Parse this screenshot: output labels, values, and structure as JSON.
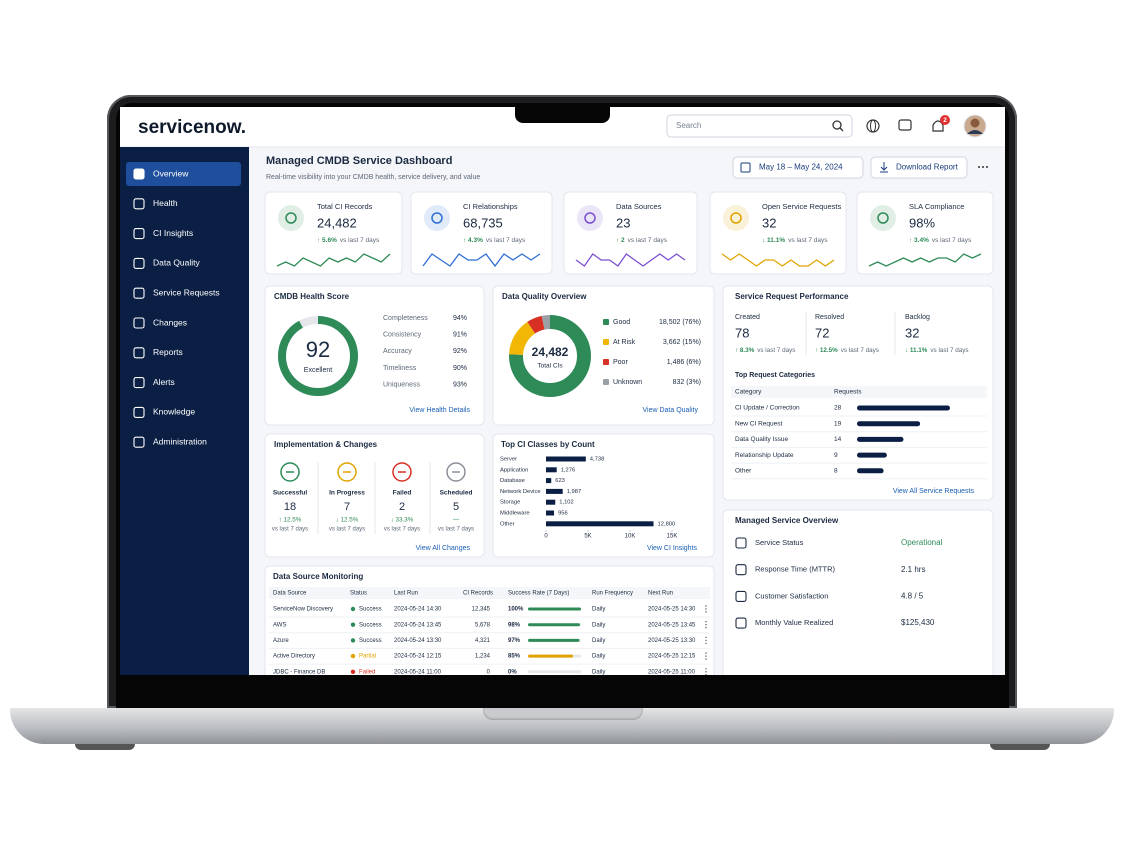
{
  "header": {
    "logo": "servicenow.",
    "search_placeholder": "Search",
    "notification_count": "2"
  },
  "nav": {
    "items": [
      "Overview",
      "Health",
      "CI Insights",
      "Data Quality",
      "Service Requests",
      "Changes",
      "Reports",
      "Alerts",
      "Knowledge",
      "Administration"
    ],
    "active": 0
  },
  "page": {
    "title": "Managed CMDB Service Dashboard",
    "subtitle": "Real-time visibility into your CMDB health, service delivery, and value",
    "date_range": "May 18 – May 24, 2024",
    "download": "Download Report"
  },
  "kpis": [
    {
      "label": "Total CI Records",
      "value": "24,482",
      "change": "↑ 5.6%",
      "period": "vs last 7 days",
      "color": "#2e8b57",
      "spark": [
        6,
        7,
        6,
        8,
        7,
        6,
        8,
        7,
        8,
        7,
        9,
        8,
        7,
        9
      ]
    },
    {
      "label": "CI Relationships",
      "value": "68,735",
      "change": "↑ 4.3%",
      "period": "vs last 7 days",
      "color": "#2f6fd6",
      "spark": [
        6,
        8,
        7,
        6,
        8,
        7,
        7,
        8,
        6,
        8,
        7,
        8,
        7,
        8
      ]
    },
    {
      "label": "Data Sources",
      "value": "23",
      "change": "↑ 2",
      "period": "vs last 7 days",
      "color": "#7b4fd0",
      "spark": [
        7,
        6,
        8,
        7,
        7,
        6,
        8,
        7,
        6,
        7,
        8,
        7,
        8,
        7
      ]
    },
    {
      "label": "Open Service Requests",
      "value": "32",
      "change": "↓ 11.1%",
      "period": "vs last 7 days",
      "color": "#e0a300",
      "spark": [
        8,
        7,
        8,
        7,
        6,
        7,
        7,
        6,
        7,
        6,
        6,
        7,
        6,
        7
      ]
    },
    {
      "label": "SLA Compliance",
      "value": "98%",
      "change": "↑ 3.4%",
      "period": "vs last 7 days",
      "color": "#2e8b57",
      "spark": [
        6,
        7,
        6,
        7,
        8,
        7,
        8,
        7,
        8,
        8,
        7,
        9,
        8,
        9
      ]
    }
  ],
  "health": {
    "title": "CMDB Health Score",
    "score": 92,
    "score_range": [
      0,
      100
    ],
    "rating": "Excellent",
    "color": "#2e8b57",
    "metrics": [
      {
        "name": "Completeness",
        "value": "94%"
      },
      {
        "name": "Consistency",
        "value": "91%"
      },
      {
        "name": "Accuracy",
        "value": "92%"
      },
      {
        "name": "Timeliness",
        "value": "90%"
      },
      {
        "name": "Uniqueness",
        "value": "93%"
      }
    ],
    "link": "View Health Details"
  },
  "data_quality": {
    "title": "Data Quality Overview",
    "total": "24,482",
    "total_label": "Total CIs",
    "categories": [
      "Good",
      "At Risk",
      "Poor",
      "Unknown"
    ],
    "values": [
      18502,
      3662,
      1486,
      832
    ],
    "value_labels": [
      "18,502 (76%)",
      "3,662 (15%)",
      "1,486 (6%)",
      "832 (3%)"
    ],
    "colors": [
      "#2e8b57",
      "#f2b705",
      "#d93025",
      "#9aa0a6"
    ],
    "link": "View Data Quality"
  },
  "service_requests": {
    "title": "Service Request Performance",
    "stats": [
      {
        "label": "Created",
        "value": "78",
        "change": "↑ 8.3%",
        "period": "vs last 7 days"
      },
      {
        "label": "Resolved",
        "value": "72",
        "change": "↑ 12.5%",
        "period": "vs last 7 days"
      },
      {
        "label": "Backlog",
        "value": "32",
        "change": "↓ 11.1%",
        "period": "vs last 7 days"
      }
    ],
    "categories_title": "Top Request Categories",
    "columns": [
      "Category",
      "Requests"
    ],
    "categories": [
      "CI Update / Correction",
      "New CI Request",
      "Data Quality Issue",
      "Relationship Update",
      "Other"
    ],
    "values": [
      28,
      19,
      14,
      9,
      8
    ],
    "color": "#0b1f44",
    "link": "View All Service Requests"
  },
  "changes": {
    "title": "Implementation & Changes",
    "items": [
      {
        "label": "Successful",
        "value": "18",
        "change": "↑ 12.5%",
        "period": "vs last 7 days",
        "color": "#2e8b57"
      },
      {
        "label": "In Progress",
        "value": "7",
        "change": "↓ 12.5%",
        "period": "vs last 7 days",
        "color": "#e0a300"
      },
      {
        "label": "Failed",
        "value": "2",
        "change": "↓ 33.3%",
        "period": "vs last 7 days",
        "color": "#d93025"
      },
      {
        "label": "Scheduled",
        "value": "5",
        "change": "—",
        "period": "vs last 7 days",
        "color": "#8a9099"
      }
    ],
    "link": "View All Changes"
  },
  "ci_classes": {
    "type": "bar",
    "title": "Top CI Classes by Count",
    "categories": [
      "Server",
      "Application",
      "Database",
      "Network Device",
      "Storage",
      "Middleware",
      "Other"
    ],
    "values": [
      4738,
      1276,
      623,
      1987,
      1102,
      956,
      12800
    ],
    "value_labels": [
      "4,738",
      "1,276",
      "623",
      "1,987",
      "1,102",
      "956",
      "12,800"
    ],
    "xlim": [
      0,
      15000
    ],
    "xticks": [
      0,
      {
        "value": 5000,
        "label": "5K"
      },
      {
        "value": 10000,
        "label": "10K"
      },
      {
        "value": 15000,
        "label": "15K"
      }
    ],
    "color": "#0b1f44",
    "link": "View CI Insights"
  },
  "monitoring": {
    "title": "Data Source Monitoring",
    "columns": [
      "Data Source",
      "Status",
      "Last Run",
      "CI Records",
      "Success Rate (7 Days)",
      "Run Frequency",
      "Next Run"
    ],
    "rows": [
      {
        "source": "ServiceNow Discovery",
        "status": "Success",
        "color": "#2e8b57",
        "last_run": "2024-05-24 14:30",
        "ci_records": "12,345",
        "success_rate": 100,
        "success_label": "100%",
        "frequency": "Daily",
        "next_run": "2024-05-25 14:30"
      },
      {
        "source": "AWS",
        "status": "Success",
        "color": "#2e8b57",
        "last_run": "2024-05-24 13:45",
        "ci_records": "5,678",
        "success_rate": 98,
        "success_label": "98%",
        "frequency": "Daily",
        "next_run": "2024-05-25 13:45"
      },
      {
        "source": "Azure",
        "status": "Success",
        "color": "#2e8b57",
        "last_run": "2024-05-24 13:30",
        "ci_records": "4,321",
        "success_rate": 97,
        "success_label": "97%",
        "frequency": "Daily",
        "next_run": "2024-05-25 13:30"
      },
      {
        "source": "Active Directory",
        "status": "Partial",
        "color": "#e0a300",
        "last_run": "2024-05-24 12:15",
        "ci_records": "1,234",
        "success_rate": 85,
        "success_label": "85%",
        "frequency": "Daily",
        "next_run": "2024-05-25 12:15"
      },
      {
        "source": "JDBC - Finance DB",
        "status": "Failed",
        "color": "#d93025",
        "last_run": "2024-05-24 11:00",
        "ci_records": "0",
        "success_rate": 0,
        "success_label": "0%",
        "frequency": "Daily",
        "next_run": "2024-05-25 11:00"
      }
    ],
    "rate_range": [
      0,
      100
    ]
  },
  "overview": {
    "title": "Managed Service Overview",
    "rows": [
      {
        "label": "Service Status",
        "value": "Operational",
        "color": "#2e8b57"
      },
      {
        "label": "Response Time (MTTR)",
        "value": "2.1 hrs",
        "color": "#1b2a41"
      },
      {
        "label": "Customer Satisfaction",
        "value": "4.8 / 5",
        "color": "#1b2a41"
      },
      {
        "label": "Monthly Value Realized",
        "value": "$125,430",
        "color": "#1b2a41"
      }
    ]
  }
}
